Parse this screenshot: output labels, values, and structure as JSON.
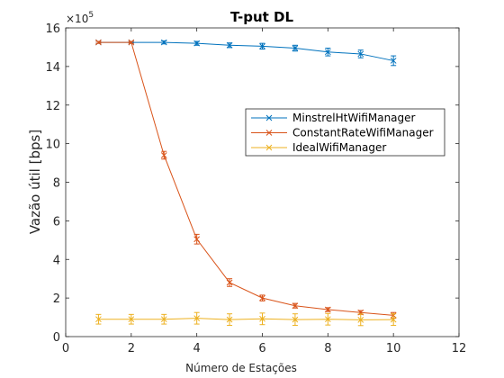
{
  "chart_data": {
    "type": "line",
    "title": "T-put DL",
    "xlabel": "Número de Estações",
    "ylabel": "Vazão útil [bps]",
    "y_exponent": {
      "base": "×10",
      "power": "5"
    },
    "xlim": [
      0,
      12
    ],
    "ylim": [
      0,
      16
    ],
    "y_scale_factor": 100000,
    "xticks": [
      "0",
      "2",
      "4",
      "6",
      "8",
      "10",
      "12"
    ],
    "yticks": [
      "0",
      "2",
      "4",
      "6",
      "8",
      "10",
      "12",
      "14",
      "16"
    ],
    "grid": false,
    "legend_position": "right-center",
    "x": [
      1,
      2,
      3,
      4,
      5,
      6,
      7,
      8,
      9,
      10
    ],
    "series": [
      {
        "name": "MinstrelHtWifiManager",
        "color": "#0072BD",
        "marker": "x",
        "values": [
          15.25,
          15.25,
          15.25,
          15.2,
          15.1,
          15.05,
          14.95,
          14.75,
          14.65,
          14.3
        ],
        "errors": [
          0.05,
          0.05,
          0.08,
          0.1,
          0.12,
          0.15,
          0.15,
          0.2,
          0.2,
          0.25
        ]
      },
      {
        "name": "ConstantRateWifiManager",
        "color": "#D95319",
        "marker": "x",
        "values": [
          15.25,
          15.25,
          9.4,
          5.05,
          2.8,
          2.0,
          1.6,
          1.4,
          1.25,
          1.1
        ],
        "errors": [
          0.05,
          0.05,
          0.2,
          0.25,
          0.2,
          0.15,
          0.12,
          0.1,
          0.1,
          0.15
        ]
      },
      {
        "name": "IdealWifiManager",
        "color": "#EDB120",
        "marker": "x",
        "values": [
          0.9,
          0.9,
          0.9,
          0.95,
          0.88,
          0.92,
          0.88,
          0.9,
          0.87,
          0.88
        ],
        "errors": [
          0.25,
          0.25,
          0.25,
          0.3,
          0.3,
          0.3,
          0.3,
          0.3,
          0.3,
          0.3
        ]
      }
    ]
  }
}
